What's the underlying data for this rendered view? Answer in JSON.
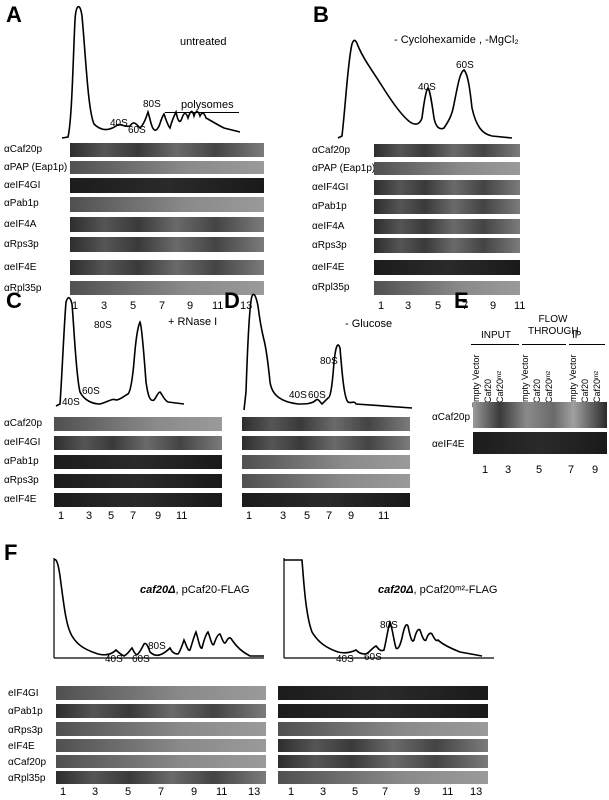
{
  "panels": {
    "A": {
      "label": "A",
      "condition": "untreated",
      "peaks": [
        "40S",
        "60S",
        "80S"
      ],
      "polysomes": "polysomes",
      "rows": [
        "αCaf20p",
        "αPAP (Eap1p)",
        "αeIF4GI",
        "αPab1p",
        "αeIF4A",
        "αRps3p",
        "αeIF4E",
        "αRpl35p"
      ],
      "lanes": [
        "1",
        "3",
        "5",
        "7",
        "9",
        "11",
        "13"
      ]
    },
    "B": {
      "label": "B",
      "condition": "- Cyclohexamide , -MgCl₂",
      "peaks": [
        "40S",
        "60S"
      ],
      "rows": [
        "αCaf20p",
        "αPAP (Eap1p)",
        "αeIF4GI",
        "αPab1p",
        "αeIF4A",
        "αRps3p",
        "αeIF4E",
        "αRpl35p"
      ],
      "lanes": [
        "1",
        "3",
        "5",
        "7",
        "9",
        "11"
      ]
    },
    "C": {
      "label": "C",
      "condition": "+ RNase I",
      "peaks": [
        "40S",
        "60S",
        "80S"
      ],
      "rows": [
        "αCaf20p",
        "αeIF4GI",
        "αPab1p",
        "αRps3p",
        "αeIF4E"
      ],
      "lanes": [
        "1",
        "3",
        "5",
        "7",
        "9",
        "11"
      ]
    },
    "D": {
      "label": "D",
      "condition": "- Glucose",
      "peaks": [
        "40S",
        "60S",
        "80S"
      ],
      "lanes": [
        "1",
        "3",
        "5",
        "7",
        "9",
        "11"
      ]
    },
    "E": {
      "label": "E",
      "groups": [
        "INPUT",
        "FLOW THROUGH",
        "IP"
      ],
      "cols": [
        "Empty Vector",
        "pCaf20",
        "pCaf20ᵐ²",
        "Empty Vector",
        "pCaf20",
        "pCaf20ᵐ²",
        "Empty Vector",
        "pCaf20",
        "pCaf20ᵐ²"
      ],
      "rows": [
        "αCaf20p",
        "αeIF4E"
      ],
      "lanes": [
        "1",
        "3",
        "5",
        "7",
        "9"
      ]
    },
    "F": {
      "label": "F",
      "left_condition_a": "caf20Δ",
      "left_condition_b": ", pCaf20-FLAG",
      "right_condition_a": "caf20Δ",
      "right_condition_b": ", pCaf20ᵐ²-FLAG",
      "left_peaks": [
        "40S",
        "60S",
        "80S"
      ],
      "right_peaks": [
        "40S",
        "60S",
        "80S"
      ],
      "rows": [
        "eIF4GI",
        "αPab1p",
        "αRps3p",
        "eIF4E",
        "αCaf20p",
        "αRpl35p"
      ],
      "lanes": [
        "1",
        "3",
        "5",
        "7",
        "9",
        "11",
        "13"
      ]
    }
  }
}
